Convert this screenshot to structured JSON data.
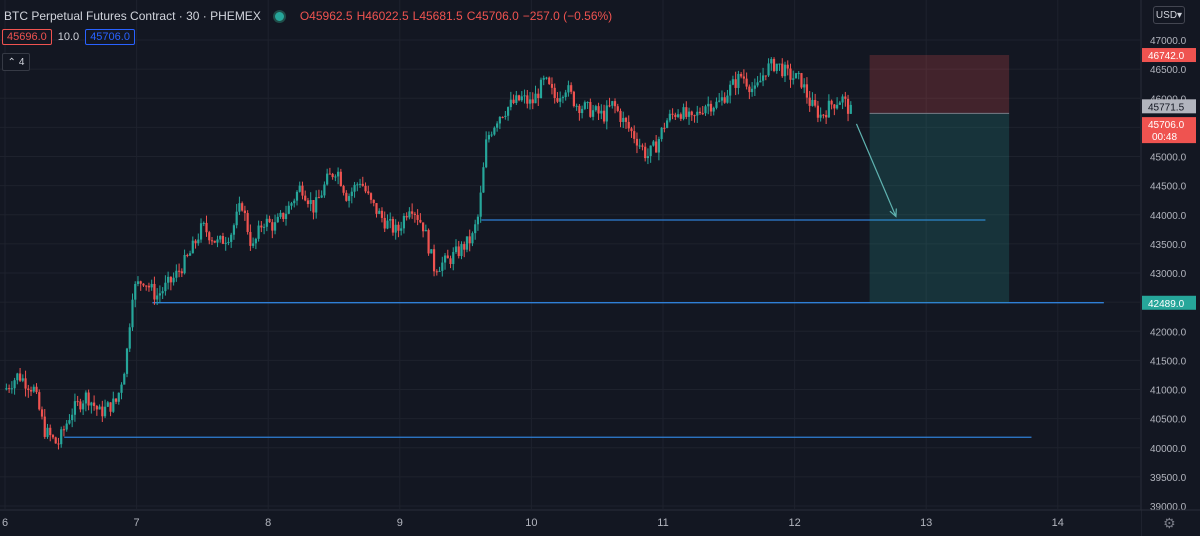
{
  "header": {
    "symbol": "BTC Perpetual Futures Contract",
    "sep1": "·",
    "interval": "30",
    "sep2": "·",
    "exchange": "PHEMEX",
    "open_label": "O",
    "open": "45962.5",
    "high_label": "H",
    "high": "46022.5",
    "low_label": "L",
    "low": "45681.5",
    "close_label": "C",
    "close": "45706.0",
    "change": "−257.0 (−0.56%)",
    "bid": "45696.0",
    "spread": "10.0",
    "ask": "45706.0",
    "indicator_count": "4",
    "currency": "USD",
    "accent_up": "#26a69a",
    "accent_down": "#ef5350"
  },
  "chart_data": {
    "type": "candlestick",
    "x_ticks": [
      "6",
      "7",
      "8",
      "9",
      "10",
      "11",
      "12",
      "13",
      "14"
    ],
    "y_ticks": [
      "39000.0",
      "39500.0",
      "40000.0",
      "40500.0",
      "41000.0",
      "41500.0",
      "42000.0",
      "42500.0",
      "43000.0",
      "43500.0",
      "44000.0",
      "44500.0",
      "45000.0",
      "45500.0",
      "46000.0",
      "46500.0",
      "47000.0"
    ],
    "ylim": [
      38900,
      47300
    ],
    "xlim": [
      6.0,
      14.6
    ],
    "price_labels": {
      "stop": "46742.0",
      "prev": "45771.5",
      "last": "45706.0",
      "countdown": "00:48",
      "target": "42489.0"
    },
    "horizontal_lines": [
      {
        "y": 43910,
        "x_start": 9.62,
        "x_end": 13.45
      },
      {
        "y": 42490,
        "x_start": 7.12,
        "x_end": 14.35
      },
      {
        "y": 40180,
        "x_start": 6.45,
        "x_end": 13.8
      }
    ],
    "position": {
      "type": "short",
      "entry": 45740,
      "stop": 46742,
      "target": 42489,
      "x_start": 12.57,
      "x_end": 13.63
    },
    "arrow": {
      "from": [
        12.47,
        45560
      ],
      "to": [
        12.77,
        43970
      ]
    },
    "path": [
      [
        6.0,
        41000
      ],
      [
        6.1,
        41250
      ],
      [
        6.22,
        41000
      ],
      [
        6.3,
        40300
      ],
      [
        6.4,
        40050
      ],
      [
        6.5,
        40600
      ],
      [
        6.62,
        40900
      ],
      [
        6.72,
        40600
      ],
      [
        6.85,
        40800
      ],
      [
        6.92,
        41500
      ],
      [
        6.97,
        42700
      ],
      [
        7.05,
        42900
      ],
      [
        7.15,
        42600
      ],
      [
        7.28,
        42900
      ],
      [
        7.4,
        43300
      ],
      [
        7.5,
        43800
      ],
      [
        7.62,
        43500
      ],
      [
        7.72,
        43700
      ],
      [
        7.8,
        44200
      ],
      [
        7.88,
        43400
      ],
      [
        7.96,
        43900
      ],
      [
        8.05,
        43800
      ],
      [
        8.15,
        44100
      ],
      [
        8.25,
        44500
      ],
      [
        8.35,
        44100
      ],
      [
        8.45,
        44600
      ],
      [
        8.52,
        44800
      ],
      [
        8.6,
        44300
      ],
      [
        8.7,
        44600
      ],
      [
        8.78,
        44200
      ],
      [
        8.88,
        43900
      ],
      [
        8.98,
        43700
      ],
      [
        9.08,
        44200
      ],
      [
        9.18,
        43800
      ],
      [
        9.26,
        43100
      ],
      [
        9.36,
        43200
      ],
      [
        9.46,
        43400
      ],
      [
        9.55,
        43600
      ],
      [
        9.6,
        44000
      ],
      [
        9.66,
        45300
      ],
      [
        9.75,
        45700
      ],
      [
        9.85,
        45900
      ],
      [
        9.93,
        46000
      ],
      [
        10.0,
        45900
      ],
      [
        10.1,
        46300
      ],
      [
        10.18,
        46000
      ],
      [
        10.26,
        46200
      ],
      [
        10.34,
        45900
      ],
      [
        10.44,
        45800
      ],
      [
        10.55,
        45700
      ],
      [
        10.62,
        45900
      ],
      [
        10.7,
        45600
      ],
      [
        10.8,
        45300
      ],
      [
        10.88,
        45000
      ],
      [
        10.95,
        45200
      ],
      [
        11.02,
        45600
      ],
      [
        11.12,
        45800
      ],
      [
        11.22,
        45600
      ],
      [
        11.32,
        45900
      ],
      [
        11.42,
        45900
      ],
      [
        11.52,
        46200
      ],
      [
        11.6,
        46400
      ],
      [
        11.7,
        46100
      ],
      [
        11.78,
        46500
      ],
      [
        11.86,
        46600
      ],
      [
        11.95,
        46400
      ],
      [
        12.05,
        46300
      ],
      [
        12.12,
        45900
      ],
      [
        12.2,
        45700
      ],
      [
        12.28,
        45900
      ],
      [
        12.36,
        46000
      ],
      [
        12.43,
        45750
      ]
    ]
  }
}
